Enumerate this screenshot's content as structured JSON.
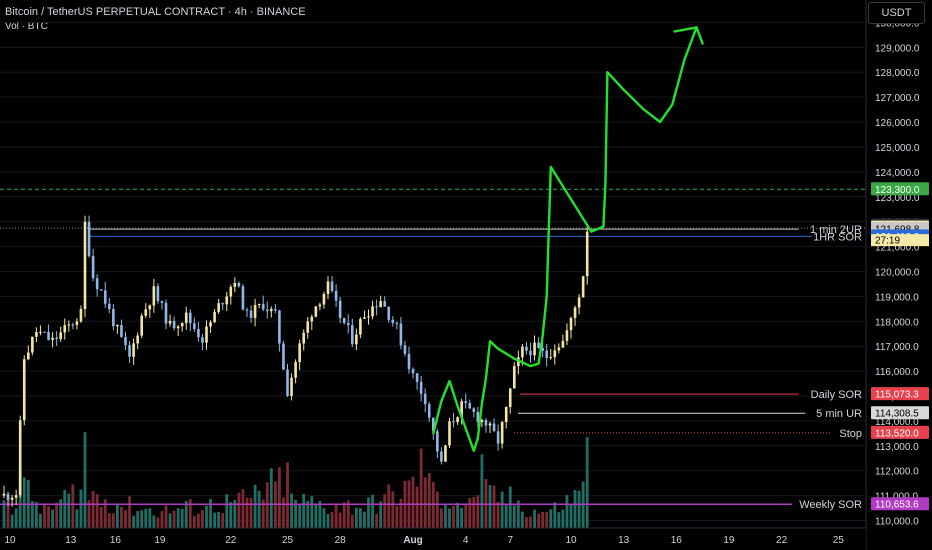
{
  "header": {
    "title": "Bitcoin / TetherUS PERPETUAL CONTRACT · 4h · BINANCE",
    "volume_label": "Vol · BTC"
  },
  "currency_button": "USDT",
  "colors": {
    "background": "#000000",
    "candle_up": "#f2e6a0",
    "candle_down": "#8fb7e8",
    "volume_up": "#1f6f66",
    "volume_down": "#7d2a32",
    "drawing": "#22e02c",
    "grid": "#15171c"
  },
  "chart_data": {
    "type": "candlestick",
    "symbol": "BTCUSDT perpetual",
    "timeframe": "4h",
    "ylim": [
      109700,
      130900
    ],
    "y_ticks": [
      "110,000.0",
      "111,000.0",
      "112,000.0",
      "113,000.0",
      "114,000.0",
      "115,000.0",
      "116,000.0",
      "117,000.0",
      "118,000.0",
      "119,000.0",
      "120,000.0",
      "121,000.0",
      "122,000.0",
      "123,000.0",
      "124,000.0",
      "125,000.0",
      "126,000.0",
      "127,000.0",
      "128,000.0",
      "129,000.0",
      "130,000.0"
    ],
    "x_ticks": [
      "10",
      "13",
      "16",
      "19",
      "22",
      "25",
      "28",
      "Aug",
      "4",
      "7",
      "10",
      "13",
      "16",
      "19",
      "22",
      "25"
    ],
    "price_path": [
      {
        "i": 0,
        "p": 111000
      },
      {
        "i": 3,
        "p": 111100
      },
      {
        "i": 5,
        "p": 116500
      },
      {
        "i": 8,
        "p": 117600
      },
      {
        "i": 12,
        "p": 117200
      },
      {
        "i": 16,
        "p": 117800
      },
      {
        "i": 19,
        "p": 118300
      },
      {
        "i": 20,
        "p": 121900
      },
      {
        "i": 22,
        "p": 119800
      },
      {
        "i": 24,
        "p": 119200
      },
      {
        "i": 28,
        "p": 117600
      },
      {
        "i": 31,
        "p": 116500
      },
      {
        "i": 34,
        "p": 118200
      },
      {
        "i": 37,
        "p": 119200
      },
      {
        "i": 41,
        "p": 117800
      },
      {
        "i": 45,
        "p": 118200
      },
      {
        "i": 49,
        "p": 117300
      },
      {
        "i": 53,
        "p": 118600
      },
      {
        "i": 57,
        "p": 119700
      },
      {
        "i": 60,
        "p": 118200
      },
      {
        "i": 64,
        "p": 118700
      },
      {
        "i": 67,
        "p": 118200
      },
      {
        "i": 70,
        "p": 115200
      },
      {
        "i": 73,
        "p": 117000
      },
      {
        "i": 76,
        "p": 118400
      },
      {
        "i": 80,
        "p": 119400
      },
      {
        "i": 83,
        "p": 118200
      },
      {
        "i": 86,
        "p": 117300
      },
      {
        "i": 89,
        "p": 118300
      },
      {
        "i": 93,
        "p": 118900
      },
      {
        "i": 97,
        "p": 117700
      },
      {
        "i": 101,
        "p": 115800
      },
      {
        "i": 104,
        "p": 114900
      },
      {
        "i": 106,
        "p": 113500
      },
      {
        "i": 108,
        "p": 112200
      },
      {
        "i": 110,
        "p": 113800
      },
      {
        "i": 113,
        "p": 114600
      },
      {
        "i": 116,
        "p": 114300
      },
      {
        "i": 119,
        "p": 113900
      },
      {
        "i": 122,
        "p": 113200
      },
      {
        "i": 124,
        "p": 114400
      },
      {
        "i": 126,
        "p": 116000
      },
      {
        "i": 128,
        "p": 116800
      },
      {
        "i": 131,
        "p": 116900
      },
      {
        "i": 134,
        "p": 116600
      },
      {
        "i": 136,
        "p": 117000
      },
      {
        "i": 138,
        "p": 117200
      },
      {
        "i": 140,
        "p": 118000
      },
      {
        "i": 142,
        "p": 119100
      },
      {
        "i": 143,
        "p": 119900
      },
      {
        "i": 144,
        "p": 121600
      }
    ],
    "volume_path": [
      {
        "i": 0,
        "v": 0.3
      },
      {
        "i": 1,
        "v": 0.25
      },
      {
        "i": 2,
        "v": 0.2
      },
      {
        "i": 3,
        "v": 0.3
      },
      {
        "i": 4,
        "v": 0.6
      },
      {
        "i": 5,
        "v": 0.35
      },
      {
        "i": 10,
        "v": 0.15
      },
      {
        "i": 19,
        "v": 0.35
      },
      {
        "i": 20,
        "v": 0.75
      },
      {
        "i": 21,
        "v": 0.3
      },
      {
        "i": 30,
        "v": 0.2
      },
      {
        "i": 38,
        "v": 0.15
      },
      {
        "i": 50,
        "v": 0.2
      },
      {
        "i": 60,
        "v": 0.25
      },
      {
        "i": 70,
        "v": 0.45
      },
      {
        "i": 71,
        "v": 0.25
      },
      {
        "i": 80,
        "v": 0.2
      },
      {
        "i": 90,
        "v": 0.2
      },
      {
        "i": 100,
        "v": 0.35
      },
      {
        "i": 104,
        "v": 0.6
      },
      {
        "i": 106,
        "v": 0.3
      },
      {
        "i": 115,
        "v": 0.2
      },
      {
        "i": 118,
        "v": 0.5
      },
      {
        "i": 119,
        "v": 0.3
      },
      {
        "i": 126,
        "v": 0.25
      },
      {
        "i": 130,
        "v": 0.15
      },
      {
        "i": 135,
        "v": 0.15
      },
      {
        "i": 142,
        "v": 0.3
      },
      {
        "i": 144,
        "v": 0.9
      }
    ],
    "levels": [
      {
        "label": "",
        "value": 123300.0,
        "tag": "123,300.0",
        "color": "#3aa845",
        "style": "dashed"
      },
      {
        "label": "",
        "value": 121835.2,
        "tag": "121,835.2",
        "color": "#2a2e39",
        "style": "none"
      },
      {
        "label": "",
        "value": 121758.1,
        "tag": "121,758.1",
        "color": "#ffffff",
        "style": "none"
      },
      {
        "label": "1 min 2UR",
        "value": 121698.8,
        "tag": "121,698.8",
        "color": "#c8c8c8",
        "style": "solid"
      },
      {
        "label": "1HR SOR",
        "value": 121410.0,
        "tag": "121,410.0",
        "color": "#2c6bd6",
        "style": "solid"
      },
      {
        "label": "Daily SOR",
        "value": 115073.3,
        "tag": "115,073.3",
        "color": "#e8414d",
        "style": "solid"
      },
      {
        "label": "5 min UR",
        "value": 114308.5,
        "tag": "114,308.5",
        "color": "#d8d8d8",
        "style": "solid"
      },
      {
        "label": "Stop",
        "value": 113520.0,
        "tag": "113,520.0",
        "color": "#e8414d",
        "style": "dotted"
      },
      {
        "label": "Weekly SOR",
        "value": 110653.6,
        "tag": "110,653.6",
        "color": "#b13ac4",
        "style": "solid"
      }
    ],
    "countdown": "27:19",
    "projection_path": [
      {
        "i": 106,
        "p": 113500
      },
      {
        "i": 108,
        "p": 114800
      },
      {
        "i": 110,
        "p": 115600
      },
      {
        "i": 112,
        "p": 114600
      },
      {
        "i": 116,
        "p": 112800
      },
      {
        "i": 117,
        "p": 113300
      },
      {
        "i": 118,
        "p": 114700
      },
      {
        "i": 119,
        "p": 115700
      },
      {
        "i": 120,
        "p": 117200
      },
      {
        "i": 122,
        "p": 116900
      },
      {
        "i": 126,
        "p": 116500
      },
      {
        "i": 130,
        "p": 116200
      },
      {
        "i": 132,
        "p": 116300
      },
      {
        "i": 133,
        "p": 117400
      },
      {
        "i": 134,
        "p": 119000
      },
      {
        "i": 135,
        "p": 124200
      },
      {
        "i": 140,
        "p": 122900
      },
      {
        "i": 145,
        "p": 121600
      },
      {
        "i": 148,
        "p": 121800
      },
      {
        "i": 148.5,
        "p": 123500
      },
      {
        "i": 149,
        "p": 128000
      },
      {
        "i": 153,
        "p": 127300
      },
      {
        "i": 158,
        "p": 126500
      },
      {
        "i": 162,
        "p": 126000
      },
      {
        "i": 165,
        "p": 126700
      },
      {
        "i": 168,
        "p": 128500
      },
      {
        "i": 171,
        "p": 129800
      }
    ],
    "projection_arrow_tip": {
      "i": 171,
      "p": 129800
    }
  }
}
